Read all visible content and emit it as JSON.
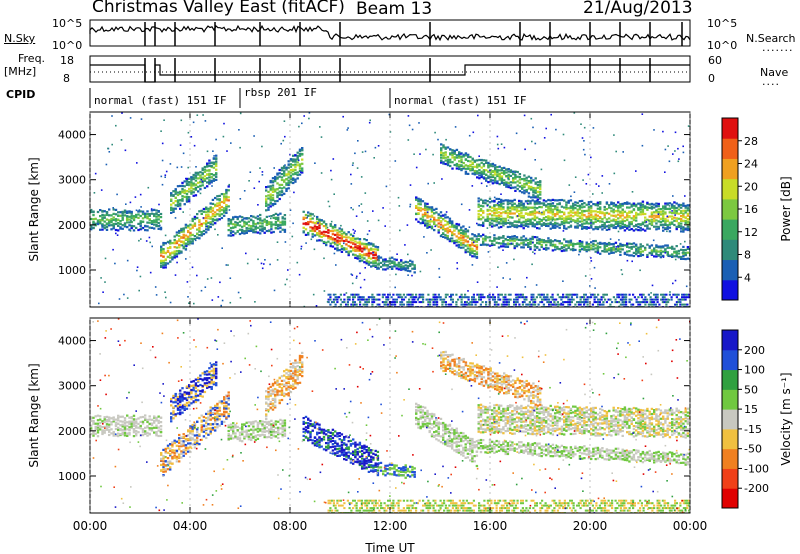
{
  "header": {
    "station": "Christmas Valley East (fitACF)",
    "beam": "Beam 13",
    "date": "21/Aug/2013"
  },
  "left_labels": {
    "nsky": "N.Sky",
    "freq": "Freq.",
    "freq_unit": "[MHz]",
    "cpid": "CPID"
  },
  "right_labels": {
    "nsearch": "N.Search",
    "nave": "Nave"
  },
  "noise_panel": {
    "left_ticks": [
      "10^5",
      "10^0"
    ],
    "right_ticks": [
      "10^5",
      "10^0"
    ]
  },
  "freq_panel": {
    "left_ticks": [
      "18",
      "8"
    ],
    "right_ticks": [
      "60",
      "0"
    ]
  },
  "cpid_segments": [
    {
      "label": "normal (fast) 151 IF",
      "start_hour": 0.0
    },
    {
      "label": "rbsp 201 IF",
      "start_hour": 6.0
    },
    {
      "label": "normal (fast) 151 IF",
      "start_hour": 12.0
    }
  ],
  "chart_data": [
    {
      "type": "heatmap",
      "title": "Power",
      "ylabel": "Slant Range [km]",
      "xlabel": "Time UT",
      "xlim": [
        0,
        24
      ],
      "ylim": [
        180,
        4500
      ],
      "y_ticks": [
        "1000",
        "2000",
        "3000",
        "4000"
      ],
      "x_ticks": [
        "00:00",
        "04:00",
        "08:00",
        "12:00",
        "16:00",
        "20:00",
        "00:00"
      ],
      "colorbar": {
        "label": "Power [dB]",
        "ticks": [
          "4",
          "8",
          "12",
          "16",
          "20",
          "24",
          "28"
        ],
        "colors": [
          "#1010e0",
          "#1a5fb4",
          "#2f8a7a",
          "#3aa860",
          "#7cc840",
          "#c8dc28",
          "#f0a020",
          "#f06018",
          "#e01010"
        ]
      }
    },
    {
      "type": "heatmap",
      "title": "Velocity",
      "ylabel": "Slant Range [km]",
      "xlabel": "Time UT",
      "xlim": [
        0,
        24
      ],
      "ylim": [
        180,
        4500
      ],
      "y_ticks": [
        "1000",
        "2000",
        "3000",
        "4000"
      ],
      "x_ticks": [
        "00:00",
        "04:00",
        "08:00",
        "12:00",
        "16:00",
        "20:00",
        "00:00"
      ],
      "colorbar": {
        "label": "Velocity [m s⁻¹]",
        "ticks": [
          "200",
          "100",
          "50",
          "15",
          "-15",
          "-50",
          "-100",
          "-200"
        ],
        "colors": [
          "#1818c8",
          "#2050d8",
          "#30a040",
          "#70c840",
          "#c8c8c0",
          "#f0c040",
          "#f08020",
          "#f04018",
          "#e00000"
        ]
      }
    }
  ]
}
